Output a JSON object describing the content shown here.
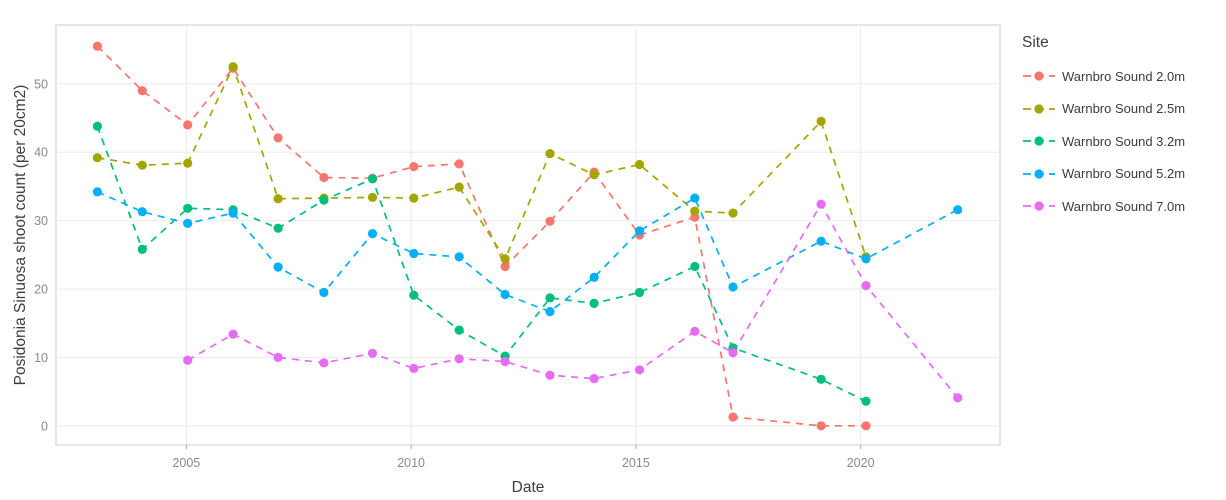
{
  "chart_data": {
    "type": "line",
    "title": "",
    "xlabel": "Date",
    "ylabel": "Posidonia Sinuosa shoot count (per 20cm2)",
    "legend_title": "Site",
    "legend_position": "right",
    "grid": "major only, light gray",
    "line_style": "dashed with circle markers",
    "xlim": [
      2002.1,
      2023.1
    ],
    "ylim": [
      -2.8,
      58.6
    ],
    "xticks": [
      2005,
      2010,
      2015,
      2020
    ],
    "yticks": [
      0,
      10,
      20,
      30,
      40,
      50
    ],
    "series": [
      {
        "name": "Warnbro Sound 2.0m",
        "color": "#F8766D",
        "points": [
          [
            2003.02,
            55.5
          ],
          [
            2004.02,
            49.0
          ],
          [
            2005.03,
            44.0
          ],
          [
            2006.04,
            52.3
          ],
          [
            2007.04,
            42.1
          ],
          [
            2008.06,
            36.3
          ],
          [
            2009.14,
            36.2
          ],
          [
            2010.06,
            37.9
          ],
          [
            2011.07,
            38.3
          ],
          [
            2012.09,
            23.3
          ],
          [
            2013.09,
            29.9
          ],
          [
            2014.07,
            37.1
          ],
          [
            2015.08,
            27.9
          ],
          [
            2016.31,
            30.5
          ],
          [
            2017.16,
            1.3
          ],
          [
            2019.12,
            0.0
          ],
          [
            2020.12,
            0.0
          ]
        ]
      },
      {
        "name": "Warnbro Sound 2.5m",
        "color": "#A3A500",
        "points": [
          [
            2003.02,
            39.2
          ],
          [
            2004.02,
            38.1
          ],
          [
            2005.03,
            38.4
          ],
          [
            2006.04,
            52.5
          ],
          [
            2007.04,
            33.2
          ],
          [
            2008.06,
            33.3
          ],
          [
            2009.14,
            33.4
          ],
          [
            2010.06,
            33.3
          ],
          [
            2011.07,
            34.9
          ],
          [
            2012.09,
            24.4
          ],
          [
            2013.09,
            39.8
          ],
          [
            2014.07,
            36.7
          ],
          [
            2015.08,
            38.2
          ],
          [
            2016.31,
            31.4
          ],
          [
            2017.16,
            31.1
          ],
          [
            2019.12,
            44.5
          ],
          [
            2020.12,
            24.7
          ]
        ]
      },
      {
        "name": "Warnbro Sound 3.2m",
        "color": "#00BF7D",
        "points": [
          [
            2003.02,
            43.8
          ],
          [
            2004.02,
            25.8
          ],
          [
            2005.03,
            31.8
          ],
          [
            2006.04,
            31.6
          ],
          [
            2007.04,
            28.9
          ],
          [
            2008.06,
            33.0
          ],
          [
            2009.14,
            36.1
          ],
          [
            2010.06,
            19.1
          ],
          [
            2011.07,
            14.0
          ],
          [
            2012.09,
            10.2
          ],
          [
            2013.09,
            18.7
          ],
          [
            2014.07,
            17.9
          ],
          [
            2015.08,
            19.5
          ],
          [
            2016.31,
            23.3
          ],
          [
            2017.16,
            11.4
          ],
          [
            2019.12,
            6.8
          ],
          [
            2020.12,
            3.6
          ]
        ]
      },
      {
        "name": "Warnbro Sound 5.2m",
        "color": "#00B0F6",
        "points": [
          [
            2003.02,
            34.2
          ],
          [
            2004.02,
            31.3
          ],
          [
            2005.03,
            29.6
          ],
          [
            2006.04,
            31.1
          ],
          [
            2007.04,
            23.2
          ],
          [
            2008.06,
            19.5
          ],
          [
            2009.14,
            28.1
          ],
          [
            2010.06,
            25.2
          ],
          [
            2011.07,
            24.7
          ],
          [
            2012.09,
            19.2
          ],
          [
            2013.09,
            16.7
          ],
          [
            2014.07,
            21.7
          ],
          [
            2015.08,
            28.5
          ],
          [
            2016.31,
            33.3
          ],
          [
            2017.16,
            20.3
          ],
          [
            2019.12,
            27.0
          ],
          [
            2020.12,
            24.4
          ],
          [
            2022.16,
            31.6
          ]
        ]
      },
      {
        "name": "Warnbro Sound 7.0m",
        "color": "#E76BF3",
        "points": [
          [
            2005.03,
            9.6
          ],
          [
            2006.04,
            13.4
          ],
          [
            2007.04,
            10.0
          ],
          [
            2008.06,
            9.2
          ],
          [
            2009.14,
            10.6
          ],
          [
            2010.06,
            8.4
          ],
          [
            2011.07,
            9.8
          ],
          [
            2012.09,
            9.4
          ],
          [
            2013.09,
            7.4
          ],
          [
            2014.07,
            6.9
          ],
          [
            2015.08,
            8.2
          ],
          [
            2016.31,
            13.8
          ],
          [
            2017.16,
            10.7
          ],
          [
            2019.12,
            32.4
          ],
          [
            2020.12,
            20.5
          ],
          [
            2022.16,
            4.1
          ]
        ]
      }
    ],
    "style_colors": {
      "panel_background": "#ffffff",
      "panel_border": "#cccccc",
      "gridline": "#ececec",
      "tick_mark": "#a6a6a6",
      "tick_label_text": "#8a8a8a",
      "axis_title_text": "#3d3d3d",
      "legend_text": "#3d3d3d"
    }
  }
}
